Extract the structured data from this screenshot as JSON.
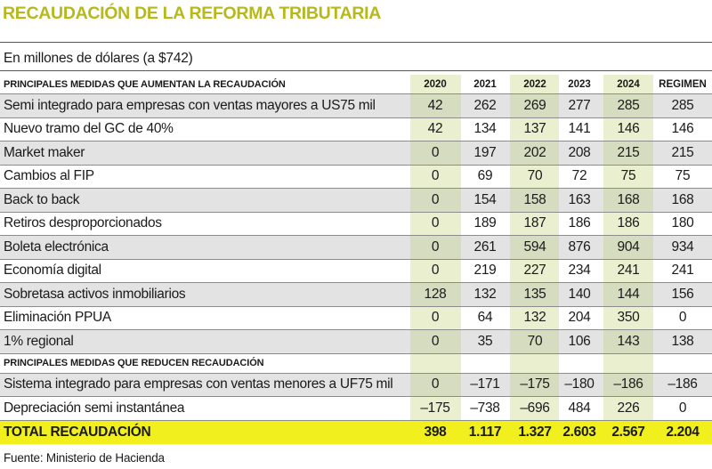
{
  "title": "RECAUDACIÓN DE LA REFORMA TRIBUTARIA",
  "subtitle": "En millones de dólares (a $742)",
  "years": [
    "2020",
    "2021",
    "2022",
    "2023",
    "2024",
    "REGIMEN"
  ],
  "section_increase": "PRINCIPALES MEDIDAS QUE AUMENTAN LA RECAUDACIÓN",
  "increase_rows": [
    {
      "label": "Semi integrado para empresas con ventas mayores a US75 mil",
      "values": [
        "42",
        "262",
        "269",
        "277",
        "285",
        "285"
      ]
    },
    {
      "label": "Nuevo tramo del GC de 40%",
      "values": [
        "42",
        "134",
        "137",
        "141",
        "146",
        "146"
      ]
    },
    {
      "label": "Market maker",
      "values": [
        "0",
        "197",
        "202",
        "208",
        "215",
        "215"
      ]
    },
    {
      "label": "Cambios al FIP",
      "values": [
        "0",
        "69",
        "70",
        "72",
        "75",
        "75"
      ]
    },
    {
      "label": "Back to back",
      "values": [
        "0",
        "154",
        "158",
        "163",
        "168",
        "168"
      ]
    },
    {
      "label": "Retiros desproporcionados",
      "values": [
        "0",
        "189",
        "187",
        "186",
        "186",
        "180"
      ]
    },
    {
      "label": "Boleta electrónica",
      "values": [
        "0",
        "261",
        "594",
        "876",
        "904",
        "934"
      ]
    },
    {
      "label": "Economía digital",
      "values": [
        "0",
        "219",
        "227",
        "234",
        "241",
        "241"
      ]
    },
    {
      "label": "Sobretasa activos inmobiliarios",
      "values": [
        "128",
        "132",
        "135",
        "140",
        "144",
        "156"
      ]
    },
    {
      "label": "Eliminación PPUA",
      "values": [
        "0",
        "64",
        "132",
        "204",
        "350",
        "0"
      ]
    },
    {
      "label": "1% regional",
      "values": [
        "0",
        "35",
        "70",
        "106",
        "143",
        "138"
      ]
    }
  ],
  "section_decrease": "PRINCIPALES MEDIDAS QUE REDUCEN RECAUDACIÓN",
  "decrease_rows": [
    {
      "label": "Sistema integrado para empresas con ventas menores a UF75 mil",
      "values": [
        "0",
        "–171",
        "–175",
        "–180",
        "–186",
        "–186"
      ]
    },
    {
      "label": "Depreciación semi instantánea",
      "values": [
        "–175",
        "–738",
        "–696",
        "484",
        "226",
        "0"
      ]
    }
  ],
  "total": {
    "label": "TOTAL RECAUDACIÓN",
    "values": [
      "398",
      "1.117",
      "1.327",
      "2.603",
      "2.567",
      "2.204"
    ]
  },
  "footer": "Fuente: Ministerio de Hacienda",
  "colors": {
    "title": "#b7b81a",
    "highlight_column": "#e9efcf",
    "total_row": "#f1ef1e",
    "gray_row": "#e3e3e3"
  }
}
